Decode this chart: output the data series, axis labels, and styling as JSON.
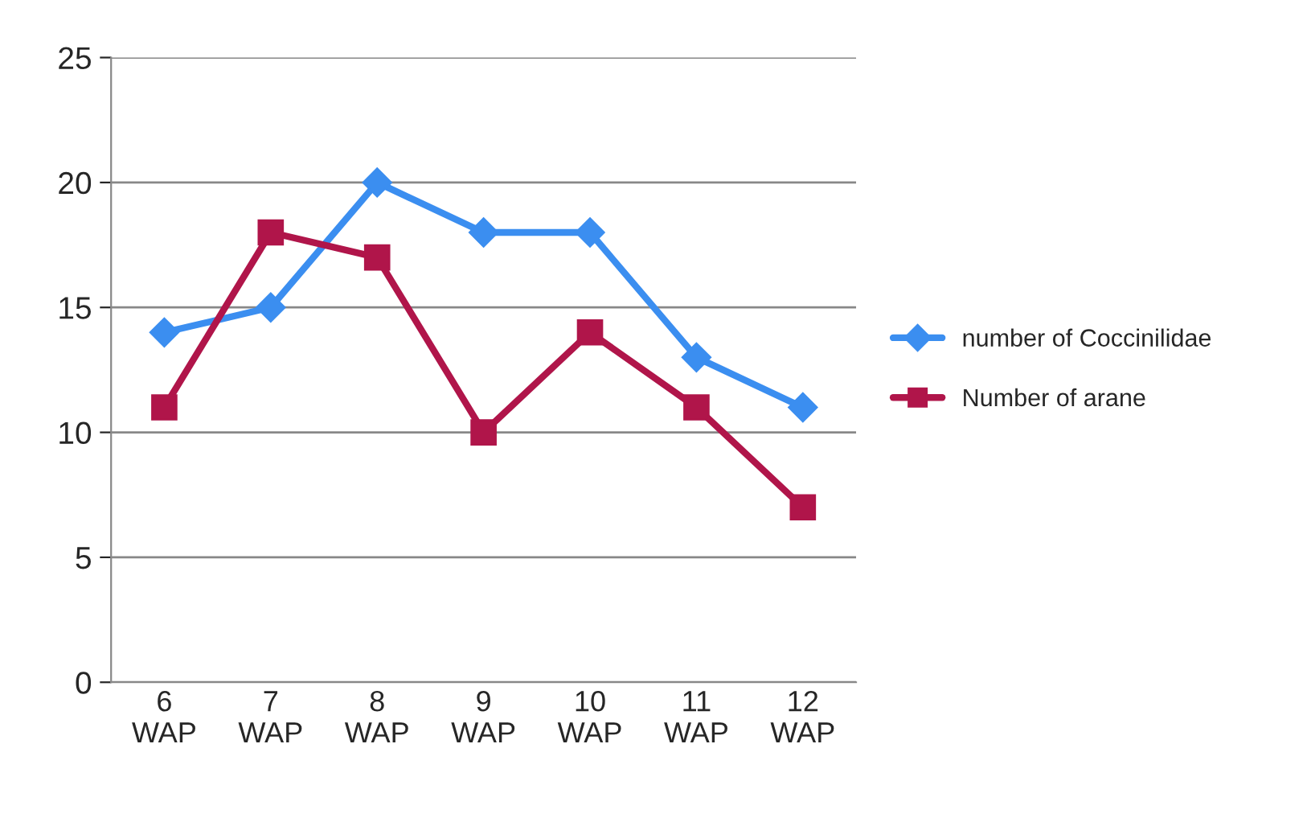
{
  "chart_data": {
    "type": "line",
    "categories": [
      "6\nWAP",
      "7\nWAP",
      "8\nWAP",
      "9\nWAP",
      "10\nWAP",
      "11\nWAP",
      "12\nWAP"
    ],
    "series": [
      {
        "name": "number of Coccinilidae",
        "color": "#3b8ef0",
        "marker": "diamond",
        "values": [
          14,
          15,
          20,
          18,
          18,
          13,
          11
        ]
      },
      {
        "name": "Number of arane",
        "color": "#b0154a",
        "marker": "square",
        "values": [
          11,
          18,
          17,
          10,
          14,
          11,
          7
        ]
      }
    ],
    "ylim": [
      0,
      25
    ],
    "yticks": [
      0,
      5,
      10,
      15,
      20,
      25
    ],
    "grid": "y",
    "legend": "right",
    "line_style": "solid"
  }
}
